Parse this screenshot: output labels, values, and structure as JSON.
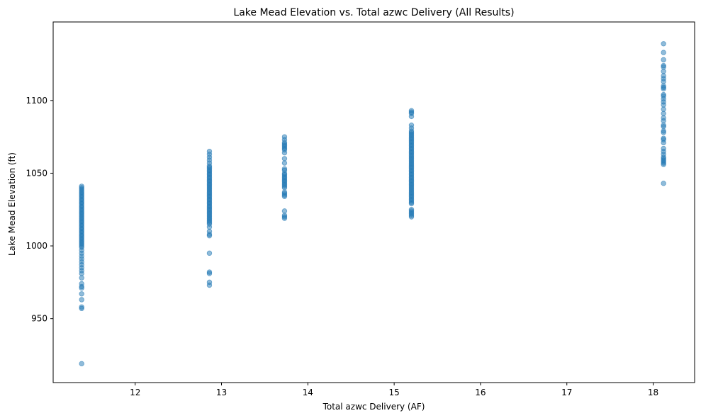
{
  "chart_data": {
    "type": "scatter",
    "title": "Lake Mead Elevation vs. Total azwc Delivery (All Results)",
    "xlabel": "Total azwc Delivery (AF)",
    "ylabel": "Lake Mead Elevation (ft)",
    "xlim": [
      11.05,
      18.48
    ],
    "ylim": [
      906,
      1154
    ],
    "xticks": [
      12,
      13,
      14,
      15,
      16,
      17,
      18
    ],
    "yticks": [
      950,
      1000,
      1050,
      1100
    ],
    "grid": false,
    "color": "#1f77b4",
    "series": [
      {
        "x": 11.38,
        "y": [
          1041,
          1040,
          1039,
          1038,
          1037,
          1036,
          1035,
          1034,
          1033,
          1032,
          1031,
          1030,
          1029,
          1028,
          1027,
          1026,
          1025,
          1024,
          1023,
          1022,
          1021,
          1020,
          1019,
          1018,
          1017,
          1016,
          1015,
          1014,
          1013,
          1012,
          1011,
          1010,
          1009,
          1008,
          1007,
          1006,
          1005,
          1004,
          1003,
          1002,
          1001,
          1000,
          999,
          997,
          995,
          993,
          991,
          989,
          987,
          985,
          983,
          981,
          978,
          974,
          972,
          971,
          967,
          963,
          958,
          957,
          919
        ]
      },
      {
        "x": 12.86,
        "y": [
          1065,
          1063,
          1061,
          1059,
          1057,
          1055,
          1054,
          1053,
          1052,
          1051,
          1050,
          1049,
          1048,
          1047,
          1046,
          1045,
          1044,
          1043,
          1042,
          1041,
          1040,
          1039,
          1038,
          1037,
          1036,
          1035,
          1034,
          1033,
          1032,
          1031,
          1030,
          1029,
          1028,
          1027,
          1026,
          1025,
          1024,
          1023,
          1022,
          1021,
          1020,
          1019,
          1018,
          1017,
          1016,
          1015,
          1013,
          1010,
          1008,
          1007,
          995,
          982,
          981,
          975,
          973
        ]
      },
      {
        "x": 13.73,
        "y": [
          1075,
          1073,
          1071,
          1070,
          1069,
          1068,
          1067,
          1066,
          1064,
          1060,
          1057,
          1053,
          1052,
          1050,
          1049,
          1048,
          1047,
          1046,
          1045,
          1044,
          1043,
          1042,
          1041,
          1040,
          1037,
          1036,
          1035,
          1034,
          1024,
          1021,
          1020,
          1019
        ]
      },
      {
        "x": 15.2,
        "y": [
          1093,
          1092,
          1091,
          1089,
          1083,
          1081,
          1079,
          1078,
          1077,
          1076,
          1075,
          1074,
          1073,
          1072,
          1071,
          1070,
          1069,
          1068,
          1067,
          1066,
          1065,
          1064,
          1063,
          1062,
          1061,
          1060,
          1059,
          1058,
          1057,
          1056,
          1055,
          1054,
          1053,
          1052,
          1051,
          1050,
          1049,
          1048,
          1047,
          1046,
          1045,
          1044,
          1043,
          1042,
          1041,
          1040,
          1039,
          1038,
          1037,
          1036,
          1035,
          1034,
          1033,
          1032,
          1031,
          1030,
          1029,
          1025,
          1024,
          1023,
          1022,
          1021,
          1020
        ]
      },
      {
        "x": 18.12,
        "y": [
          1139,
          1133,
          1128,
          1124,
          1123,
          1120,
          1117,
          1115,
          1113,
          1110,
          1109,
          1108,
          1104,
          1103,
          1101,
          1099,
          1097,
          1094,
          1091,
          1088,
          1086,
          1083,
          1082,
          1079,
          1078,
          1074,
          1073,
          1071,
          1067,
          1065,
          1063,
          1061,
          1060,
          1059,
          1058,
          1057,
          1056,
          1043
        ]
      }
    ]
  }
}
